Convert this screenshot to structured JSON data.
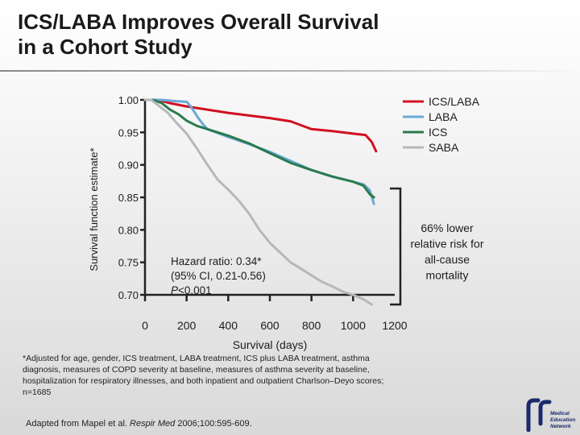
{
  "slide": {
    "title_line1": "ICS/LABA Improves Overall Survival",
    "title_line2": "in a Cohort Study",
    "footnote": "*Adjusted for age, gender, ICS treatment, LABA treatment, ICS plus LABA treatment, asthma diagnosis, measures of COPD severity at baseline, measures of asthma severity at baseline, hospitalization for respiratory illnesses, and both inpatient and outpatient Charlson–Deyo scores; n=1685",
    "source_prefix": "Adapted from Mapel et al. ",
    "source_journal": "Respir Med",
    "source_suffix": " 2006;100:595-609.",
    "logo_text": [
      "Medical",
      "Education",
      "Network"
    ]
  },
  "colors": {
    "ICS/LABA": "#d01020",
    "LABA": "#6aa8d6",
    "ICS": "#2a7a4e",
    "SABA": "#b4b8bc",
    "axis": "#222222",
    "logo": "#1a2a6a"
  },
  "chart_data": {
    "type": "line",
    "title": "",
    "xlabel": "Survival (days)",
    "ylabel": "Survival function estimate*",
    "xlim": [
      0,
      1200
    ],
    "ylim": [
      0.7,
      1.0
    ],
    "x_ticks": [
      "0",
      "200",
      "400",
      "600",
      "800",
      "1000",
      "1200"
    ],
    "y_ticks": [
      "1.00",
      "0.95",
      "0.90",
      "0.85",
      "0.80",
      "0.75",
      "0.70"
    ],
    "legend_position": "top-right",
    "series": [
      {
        "name": "ICS/LABA",
        "points": [
          [
            0,
            1.0
          ],
          [
            60,
            1.0
          ],
          [
            120,
            0.995
          ],
          [
            200,
            0.99
          ],
          [
            300,
            0.985
          ],
          [
            400,
            0.98
          ],
          [
            500,
            0.976
          ],
          [
            600,
            0.972
          ],
          [
            700,
            0.967
          ],
          [
            800,
            0.955
          ],
          [
            900,
            0.952
          ],
          [
            1000,
            0.948
          ],
          [
            1060,
            0.946
          ],
          [
            1090,
            0.935
          ],
          [
            1110,
            0.921
          ]
        ]
      },
      {
        "name": "LABA",
        "points": [
          [
            0,
            1.0
          ],
          [
            80,
            1.0
          ],
          [
            150,
            0.998
          ],
          [
            200,
            0.997
          ],
          [
            220,
            0.99
          ],
          [
            250,
            0.975
          ],
          [
            280,
            0.962
          ],
          [
            300,
            0.955
          ],
          [
            400,
            0.943
          ],
          [
            500,
            0.932
          ],
          [
            600,
            0.92
          ],
          [
            700,
            0.906
          ],
          [
            800,
            0.892
          ],
          [
            900,
            0.882
          ],
          [
            1000,
            0.874
          ],
          [
            1050,
            0.87
          ],
          [
            1080,
            0.861
          ],
          [
            1100,
            0.84
          ]
        ]
      },
      {
        "name": "ICS",
        "points": [
          [
            0,
            1.0
          ],
          [
            40,
            1.0
          ],
          [
            80,
            0.995
          ],
          [
            120,
            0.985
          ],
          [
            160,
            0.978
          ],
          [
            200,
            0.968
          ],
          [
            250,
            0.96
          ],
          [
            300,
            0.955
          ],
          [
            400,
            0.945
          ],
          [
            500,
            0.933
          ],
          [
            600,
            0.918
          ],
          [
            700,
            0.903
          ],
          [
            800,
            0.892
          ],
          [
            900,
            0.882
          ],
          [
            1000,
            0.874
          ],
          [
            1050,
            0.868
          ],
          [
            1080,
            0.855
          ],
          [
            1100,
            0.85
          ]
        ]
      },
      {
        "name": "SABA",
        "points": [
          [
            0,
            1.0
          ],
          [
            30,
            1.0
          ],
          [
            70,
            0.99
          ],
          [
            110,
            0.98
          ],
          [
            150,
            0.965
          ],
          [
            200,
            0.948
          ],
          [
            250,
            0.925
          ],
          [
            300,
            0.9
          ],
          [
            350,
            0.877
          ],
          [
            400,
            0.862
          ],
          [
            450,
            0.845
          ],
          [
            500,
            0.825
          ],
          [
            550,
            0.8
          ],
          [
            600,
            0.78
          ],
          [
            650,
            0.765
          ],
          [
            700,
            0.75
          ],
          [
            750,
            0.74
          ],
          [
            800,
            0.73
          ],
          [
            850,
            0.72
          ],
          [
            900,
            0.713
          ],
          [
            950,
            0.705
          ],
          [
            1000,
            0.7
          ],
          [
            1050,
            0.693
          ],
          [
            1090,
            0.685
          ]
        ]
      }
    ],
    "annotations": {
      "hazard": [
        "Hazard ratio: 0.34*",
        "(95% CI, 0.21-0.56)",
        "P<0.001"
      ],
      "bracket": [
        "66% lower",
        "relative risk for",
        "all-cause",
        "mortality"
      ]
    }
  }
}
